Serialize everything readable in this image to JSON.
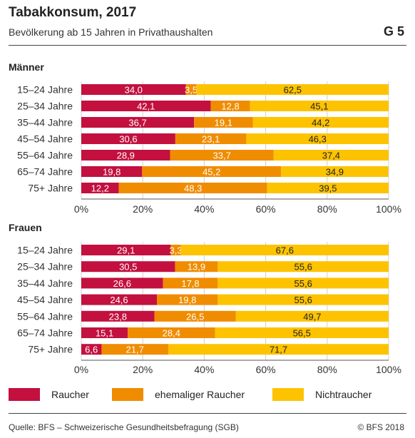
{
  "header": {
    "title": "Tabakkonsum, 2017",
    "subtitle": "Bevölkerung ab 15 Jahren in Privathaushalten",
    "graphic_number": "G 5"
  },
  "footer": {
    "source": "Quelle: BFS – Schweizerische Gesundheitsbefragung (SGB)",
    "copyright": "© BFS 2018"
  },
  "legend": [
    {
      "label": "Raucher",
      "color": "#c3103f"
    },
    {
      "label": "ehemaliger Raucher",
      "color": "#f08c00"
    },
    {
      "label": "Nichtraucher",
      "color": "#fdc300"
    }
  ],
  "chart_data": [
    {
      "type": "bar",
      "orientation": "horizontal",
      "stacked": true,
      "title": "Männer",
      "categories": [
        "15–24 Jahre",
        "25–34 Jahre",
        "35–44 Jahre",
        "45–54 Jahre",
        "55–64 Jahre",
        "65–74 Jahre",
        "75+ Jahre"
      ],
      "value_labels": [
        "34,0",
        "3,5",
        "62,5",
        "42,1",
        "12,8",
        "45,1",
        "36,7",
        "19,1",
        "44,2",
        "30,6",
        "23,1",
        "46,3",
        "28,9",
        "33,7",
        "37,4",
        "19,8",
        "45,2",
        "34,9",
        "12,2",
        "48,3",
        "39,5"
      ],
      "series": [
        {
          "name": "Raucher",
          "values": [
            34.0,
            42.1,
            36.7,
            30.6,
            28.9,
            19.8,
            12.2
          ]
        },
        {
          "name": "ehemaliger Raucher",
          "values": [
            3.5,
            12.8,
            19.1,
            23.1,
            33.7,
            45.2,
            48.3
          ]
        },
        {
          "name": "Nichtraucher",
          "values": [
            62.5,
            45.1,
            44.2,
            46.3,
            37.4,
            34.9,
            39.5
          ]
        }
      ],
      "xlim": [
        0,
        100
      ],
      "xticks": [
        "0%",
        "20%",
        "40%",
        "60%",
        "80%",
        "100%"
      ],
      "grid": true
    },
    {
      "type": "bar",
      "orientation": "horizontal",
      "stacked": true,
      "title": "Frauen",
      "categories": [
        "15–24 Jahre",
        "25–34 Jahre",
        "35–44 Jahre",
        "45–54 Jahre",
        "55–64 Jahre",
        "65–74 Jahre",
        "75+ Jahre"
      ],
      "value_labels": [
        "29,1",
        "3,3",
        "67,6",
        "30,5",
        "13,9",
        "55,6",
        "26,6",
        "17,8",
        "55,6",
        "24,6",
        "19,8",
        "55,6",
        "23,8",
        "26,5",
        "49,7",
        "15,1",
        "28,4",
        "56,5",
        "6,6",
        "21,7",
        "71,7"
      ],
      "series": [
        {
          "name": "Raucher",
          "values": [
            29.1,
            30.5,
            26.6,
            24.6,
            23.8,
            15.1,
            6.6
          ]
        },
        {
          "name": "ehemaliger Raucher",
          "values": [
            3.3,
            13.9,
            17.8,
            19.8,
            26.5,
            28.4,
            21.7
          ]
        },
        {
          "name": "Nichtraucher",
          "values": [
            67.6,
            55.6,
            55.6,
            55.6,
            49.7,
            56.5,
            71.7
          ]
        }
      ],
      "xlim": [
        0,
        100
      ],
      "xticks": [
        "0%",
        "20%",
        "40%",
        "60%",
        "80%",
        "100%"
      ],
      "grid": true
    }
  ]
}
